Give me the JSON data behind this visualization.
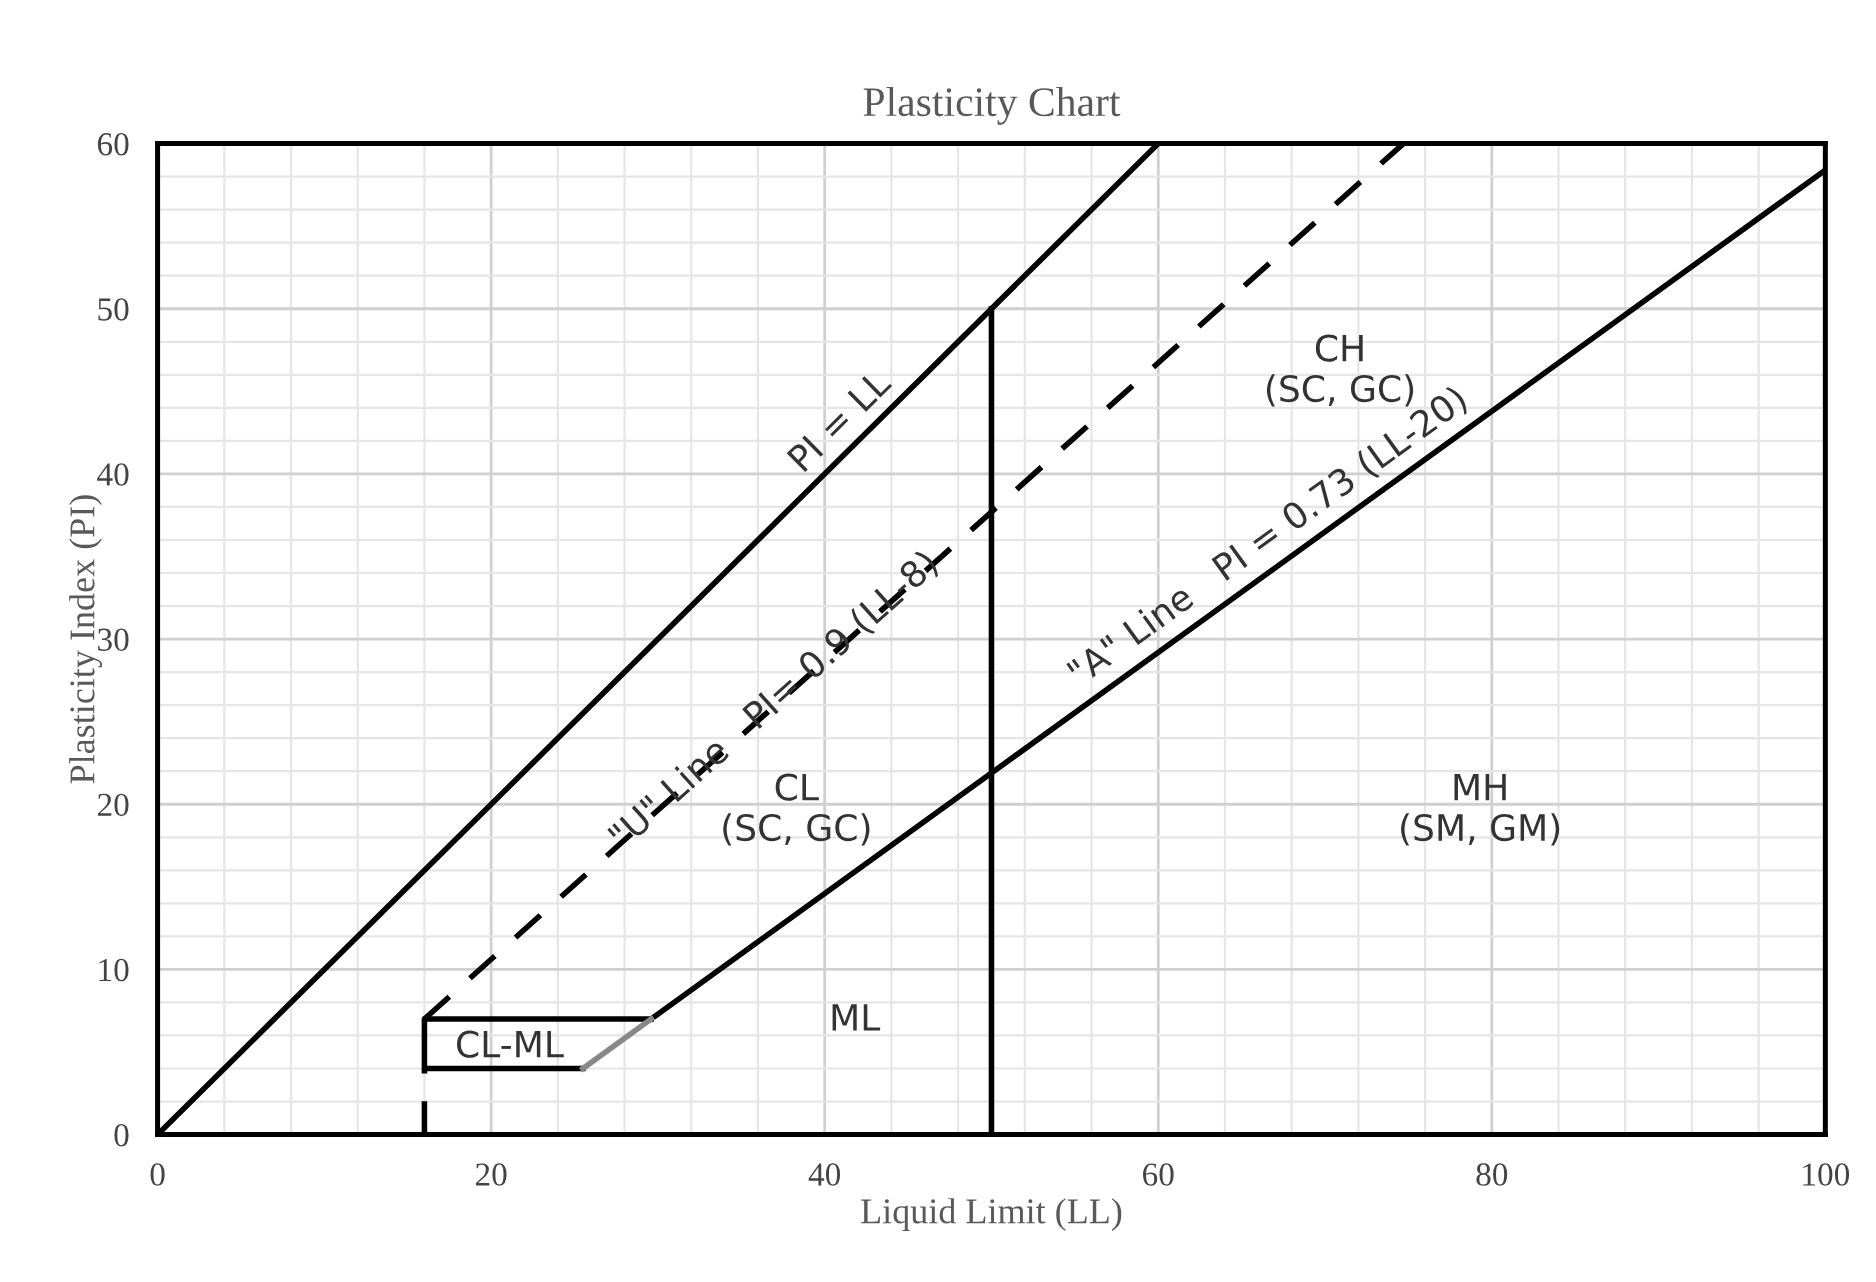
{
  "chart_data": {
    "type": "line",
    "title": "Plasticity Chart",
    "xlabel": "Liquid Limit (LL)",
    "ylabel": "Plasticity Index (PI)",
    "xlim": [
      0,
      100
    ],
    "ylim": [
      0,
      60
    ],
    "xticks": [
      0,
      20,
      40,
      60,
      80,
      100
    ],
    "yticks": [
      0,
      10,
      20,
      30,
      40,
      50,
      60
    ],
    "grid": true,
    "marker": "none",
    "series": [
      {
        "name": "PI = LL",
        "x": [
          0,
          60
        ],
        "values": [
          0,
          60
        ],
        "color": "#000000",
        "line_style": "solid"
      },
      {
        "name": "\"U\" Line   PI= 0.9 (LL-8)",
        "x": [
          16,
          74.7
        ],
        "values": [
          7,
          60
        ],
        "color": "#000000",
        "line_style": "dashed"
      },
      {
        "x": [
          16,
          16
        ],
        "values": [
          0,
          4
        ],
        "color": "#000000",
        "line_style": "dashed"
      },
      {
        "name": "\"A\" Line   PI = 0.73 (LL-20)",
        "x": [
          29.6,
          100
        ],
        "values": [
          7,
          58.4
        ],
        "color": "#000000",
        "line_style": "solid"
      },
      {
        "x": [
          50,
          50
        ],
        "values": [
          0,
          50
        ],
        "color": "#000000",
        "line_style": "solid"
      },
      {
        "x": [
          25.5,
          16,
          16,
          29.6
        ],
        "values": [
          4,
          4,
          7,
          7
        ],
        "color": "#000000",
        "line_style": "solid"
      },
      {
        "x": [
          25.5,
          29.6
        ],
        "values": [
          4,
          7
        ],
        "color": "#888888",
        "line_style": "solid"
      }
    ],
    "annotations": [
      "CH\n(SC, GC)",
      "CL\n(SC, GC)",
      "MH\n(SM, GM)",
      "ML",
      "CL-ML"
    ]
  }
}
